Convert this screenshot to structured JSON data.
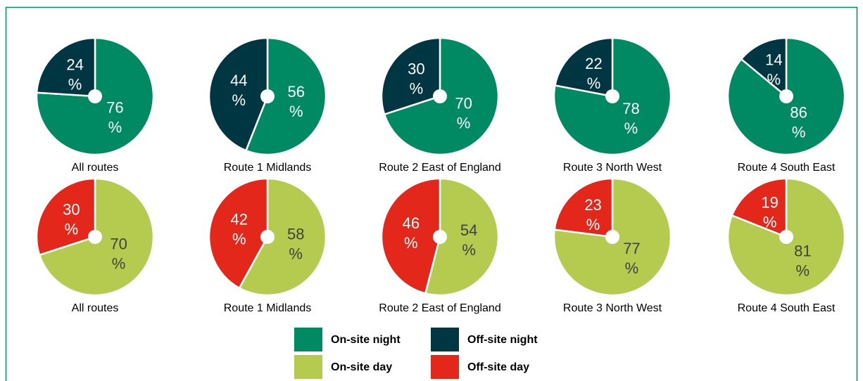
{
  "chart_data": [
    {
      "type": "pie",
      "title": "All routes",
      "categories": [
        "On-site night",
        "Off-site night"
      ],
      "values": [
        76,
        24
      ],
      "value_labels": [
        "76%",
        "24%"
      ],
      "colors": [
        "#008a63",
        "#003641"
      ],
      "label_colors": [
        "#ffffff",
        "#ffffff"
      ]
    },
    {
      "type": "pie",
      "title": "Route 1 Midlands",
      "categories": [
        "On-site night",
        "Off-site night"
      ],
      "values": [
        56,
        44
      ],
      "value_labels": [
        "56%",
        "44%"
      ],
      "colors": [
        "#008a63",
        "#003641"
      ],
      "label_colors": [
        "#ffffff",
        "#ffffff"
      ]
    },
    {
      "type": "pie",
      "title": "Route 2 East of England",
      "categories": [
        "On-site night",
        "Off-site night"
      ],
      "values": [
        70,
        30
      ],
      "value_labels": [
        "70%",
        "30%"
      ],
      "colors": [
        "#008a63",
        "#003641"
      ],
      "label_colors": [
        "#ffffff",
        "#ffffff"
      ]
    },
    {
      "type": "pie",
      "title": "Route 3 North West",
      "categories": [
        "On-site night",
        "Off-site night"
      ],
      "values": [
        78,
        22
      ],
      "value_labels": [
        "78%",
        "22%"
      ],
      "colors": [
        "#008a63",
        "#003641"
      ],
      "label_colors": [
        "#ffffff",
        "#ffffff"
      ]
    },
    {
      "type": "pie",
      "title": "Route 4 South East",
      "categories": [
        "On-site night",
        "Off-site night"
      ],
      "values": [
        86,
        14
      ],
      "value_labels": [
        "86%",
        "14%"
      ],
      "colors": [
        "#008a63",
        "#003641"
      ],
      "label_colors": [
        "#ffffff",
        "#ffffff"
      ]
    },
    {
      "type": "pie",
      "title": "All routes",
      "categories": [
        "On-site day",
        "Off-site day"
      ],
      "values": [
        70,
        30
      ],
      "value_labels": [
        "70%",
        "30%"
      ],
      "colors": [
        "#b4cb50",
        "#e3281b"
      ],
      "label_colors": [
        "#404040",
        "#ffffff"
      ]
    },
    {
      "type": "pie",
      "title": "Route 1 Midlands",
      "categories": [
        "On-site day",
        "Off-site day"
      ],
      "values": [
        58,
        42
      ],
      "value_labels": [
        "58%",
        "42%"
      ],
      "colors": [
        "#b4cb50",
        "#e3281b"
      ],
      "label_colors": [
        "#404040",
        "#ffffff"
      ]
    },
    {
      "type": "pie",
      "title": "Route 2 East of England",
      "categories": [
        "On-site day",
        "Off-site day"
      ],
      "values": [
        54,
        46
      ],
      "value_labels": [
        "54%",
        "46%"
      ],
      "colors": [
        "#b4cb50",
        "#e3281b"
      ],
      "label_colors": [
        "#404040",
        "#ffffff"
      ]
    },
    {
      "type": "pie",
      "title": "Route 3 North West",
      "categories": [
        "On-site day",
        "Off-site day"
      ],
      "values": [
        77,
        23
      ],
      "value_labels": [
        "77%",
        "23%"
      ],
      "colors": [
        "#b4cb50",
        "#e3281b"
      ],
      "label_colors": [
        "#404040",
        "#ffffff"
      ]
    },
    {
      "type": "pie",
      "title": "Route 4 South East",
      "categories": [
        "On-site day",
        "Off-site day"
      ],
      "values": [
        81,
        19
      ],
      "value_labels": [
        "81%",
        "19%"
      ],
      "colors": [
        "#b4cb50",
        "#e3281b"
      ],
      "label_colors": [
        "#404040",
        "#ffffff"
      ]
    }
  ],
  "legend": {
    "items": [
      {
        "name": "On-site night",
        "color": "#008a63"
      },
      {
        "name": "Off-site night",
        "color": "#003641"
      },
      {
        "name": "On-site day",
        "color": "#b4cb50"
      },
      {
        "name": "Off-site day",
        "color": "#e3281b"
      }
    ]
  }
}
